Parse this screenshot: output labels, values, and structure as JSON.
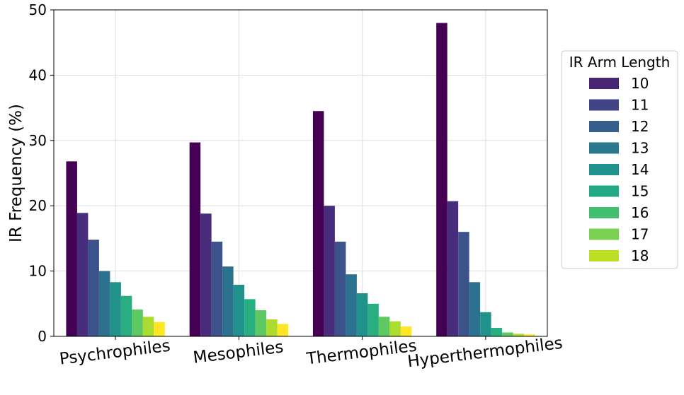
{
  "chart_data": {
    "type": "bar",
    "title": "",
    "xlabel": "",
    "ylabel": "IR Frequency (%)",
    "ylim": [
      0,
      50
    ],
    "yticks": [
      0,
      10,
      20,
      30,
      40,
      50
    ],
    "grid": true,
    "legend_title": "IR Arm Length",
    "legend_position": "right-outside",
    "categories": [
      "Psychrophiles",
      "Mesophiles",
      "Thermophiles",
      "Hyperthermophiles"
    ],
    "series": [
      {
        "name": "10",
        "color": "#440154",
        "values": [
          26.8,
          29.7,
          34.5,
          48.0
        ]
      },
      {
        "name": "11",
        "color": "#472d7b",
        "values": [
          18.9,
          18.8,
          20.0,
          20.7
        ]
      },
      {
        "name": "12",
        "color": "#3b528b",
        "values": [
          14.8,
          14.5,
          14.5,
          16.0
        ]
      },
      {
        "name": "13",
        "color": "#2c728e",
        "values": [
          10.0,
          10.7,
          9.5,
          8.3
        ]
      },
      {
        "name": "14",
        "color": "#21918c",
        "values": [
          8.3,
          7.9,
          6.6,
          3.7
        ]
      },
      {
        "name": "15",
        "color": "#28ae80",
        "values": [
          6.2,
          5.7,
          5.0,
          1.3
        ]
      },
      {
        "name": "16",
        "color": "#5ec962",
        "values": [
          4.1,
          4.0,
          3.0,
          0.6
        ]
      },
      {
        "name": "17",
        "color": "#addc30",
        "values": [
          3.0,
          2.6,
          2.3,
          0.4
        ]
      },
      {
        "name": "18",
        "color": "#fde725",
        "values": [
          2.2,
          1.9,
          1.5,
          0.3
        ]
      }
    ],
    "legend_colors": [
      "#482475",
      "#414487",
      "#355f8d",
      "#2a788e",
      "#21918c",
      "#22a884",
      "#44bf70",
      "#7ad151",
      "#bddf26"
    ]
  }
}
